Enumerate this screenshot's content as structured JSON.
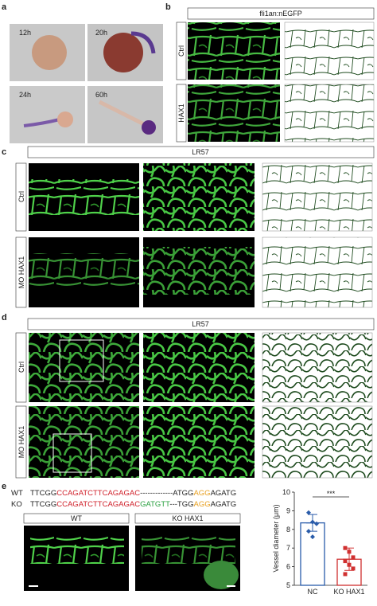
{
  "panels": {
    "a": {
      "label": "a",
      "stages": [
        "12h",
        "20h",
        "24h",
        "60h"
      ]
    },
    "b": {
      "label": "b",
      "header": "fli1an:nEGFP",
      "rows": [
        "Ctrl",
        "HAX1"
      ]
    },
    "c": {
      "label": "c",
      "header": "LR57",
      "rows": [
        "Ctrl",
        "MO HAX1"
      ]
    },
    "d": {
      "label": "d",
      "header": "LR57",
      "rows": [
        "Ctrl",
        "MO HAX1"
      ]
    },
    "e": {
      "label": "e",
      "sequences": [
        {
          "name": "WT",
          "parts": [
            "TTCGG",
            "CCAGATCTTCAGAGAC",
            "-------------ATGG",
            "AGG",
            "AGATG"
          ]
        },
        {
          "name": "KO",
          "parts": [
            "TTCGG",
            "CCAGATCTTCAGAGAC",
            "GATGTT",
            "---TGG",
            "AGG",
            "AGATG"
          ]
        }
      ],
      "images": [
        "WT",
        "KO  HAX1"
      ]
    }
  },
  "chart_data": {
    "type": "bar",
    "y_label": "Vessel diameter (μm)",
    "categories": [
      "NC",
      "KO HAX1"
    ],
    "values": [
      8.35,
      6.4
    ],
    "errors": [
      0.45,
      0.6
    ],
    "points": [
      [
        8.9,
        8.4,
        8.3,
        7.9,
        7.6
      ],
      [
        7.0,
        6.8,
        6.5,
        6.3,
        6.1,
        5.9,
        5.6
      ]
    ],
    "colors": [
      "#2a5caa",
      "#d03030"
    ],
    "ylim": [
      5,
      10
    ],
    "yticks": [
      5,
      6,
      7,
      8,
      9,
      10
    ],
    "annotation": "***"
  }
}
